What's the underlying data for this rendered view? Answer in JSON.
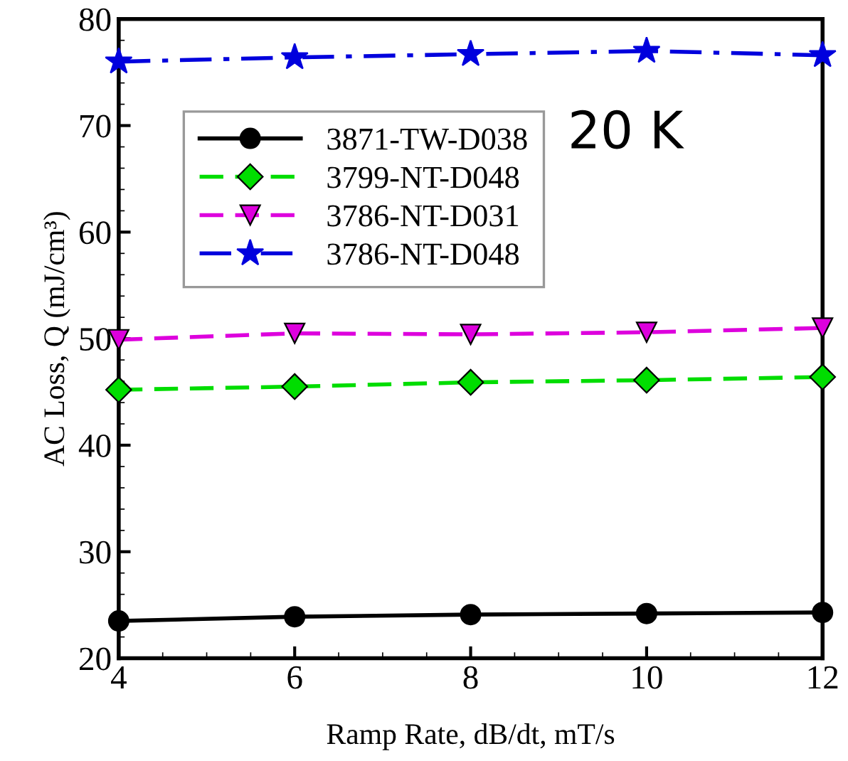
{
  "chart_data": {
    "type": "line",
    "xlabel": "Ramp Rate, dB/dt, mT/s",
    "ylabel": "AC Loss, Q (mJ/cm³)",
    "x": [
      4,
      6,
      8,
      10,
      12
    ],
    "series": [
      {
        "name": "3871-TW-D038",
        "color": "#000000",
        "marker": "circle",
        "line_style": "solid",
        "values": [
          23.5,
          23.9,
          24.1,
          24.2,
          24.3
        ]
      },
      {
        "name": "3799-NT-D048",
        "color": "#00dd00",
        "marker": "diamond",
        "line_style": "dashed",
        "values": [
          45.2,
          45.5,
          45.9,
          46.1,
          46.4
        ]
      },
      {
        "name": "3786-NT-D031",
        "color": "#dd00dd",
        "marker": "triangle",
        "line_style": "dashed",
        "values": [
          49.9,
          50.5,
          50.4,
          50.6,
          51.0
        ]
      },
      {
        "name": "3786-NT-D048",
        "color": "#0000dd",
        "marker": "star",
        "line_style": "dashdot",
        "values": [
          76.0,
          76.4,
          76.7,
          77.0,
          76.6
        ]
      }
    ],
    "xlim": [
      4,
      12
    ],
    "xticks": [
      4,
      6,
      8,
      10,
      12
    ],
    "ylim": [
      20,
      80
    ],
    "yticks": [
      20,
      30,
      40,
      50,
      60,
      70,
      80
    ],
    "grid": false,
    "legend": "top left",
    "annotations": [
      "20 K"
    ]
  }
}
